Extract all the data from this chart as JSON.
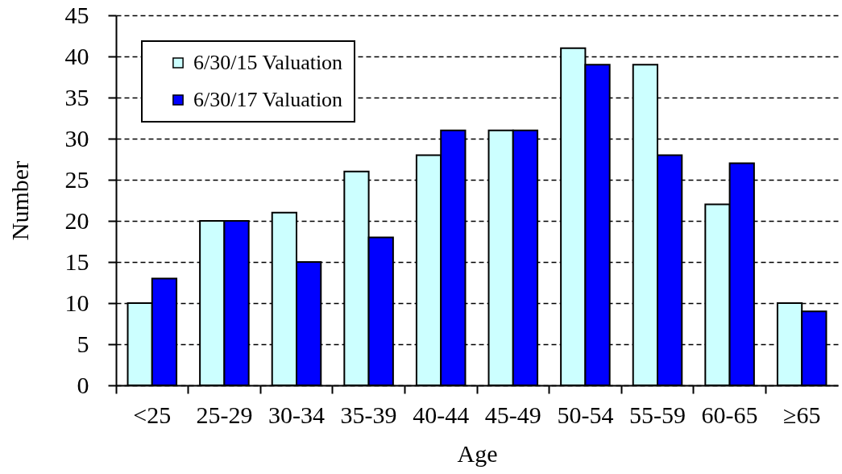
{
  "chart_data": {
    "type": "bar",
    "xlabel": "Age",
    "ylabel": "Number",
    "categories": [
      "<25",
      "25-29",
      "30-34",
      "35-39",
      "40-44",
      "45-49",
      "50-54",
      "55-59",
      "60-65",
      "≥65"
    ],
    "series": [
      {
        "name": "6/30/15 Valuation",
        "color": "#ccffff",
        "values": [
          10,
          20,
          21,
          26,
          28,
          31,
          41,
          39,
          22,
          10
        ]
      },
      {
        "name": "6/30/17 Valuation",
        "color": "#0000ff",
        "values": [
          13,
          20,
          15,
          18,
          31,
          31,
          39,
          28,
          27,
          9
        ]
      }
    ],
    "ylim": [
      0,
      45
    ],
    "yticks": [
      0,
      5,
      10,
      15,
      20,
      25,
      30,
      35,
      40,
      45
    ],
    "grid": "y",
    "legend": "top left"
  }
}
